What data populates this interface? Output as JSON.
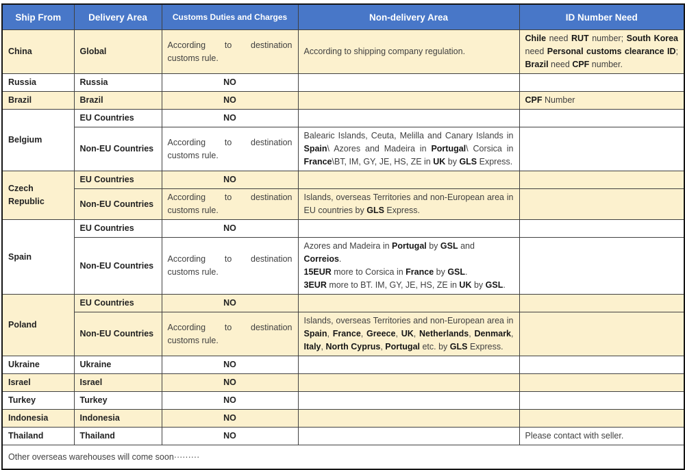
{
  "table": {
    "headers": [
      "Ship From",
      "Delivery Area",
      "Customs Duties and Charges",
      "Non-delivery Area",
      "ID Number Need"
    ],
    "accent_color": "#4877C8",
    "shade_color": "#FCF1CE",
    "groups": [
      {
        "ship_from": "China",
        "rows": [
          {
            "delivery": "Global",
            "customs": {
              "text": "According to destination customs rule.",
              "justify": true
            },
            "non_delivery": {
              "text": "According to shipping company regulation."
            },
            "id_need": {
              "justify": true,
              "segments": [
                {
                  "t": "Chile",
                  "b": 1
                },
                {
                  "t": " need "
                },
                {
                  "t": "RUT",
                  "b": 1
                },
                {
                  "t": " number; "
                },
                {
                  "t": "South Korea",
                  "b": 1
                },
                {
                  "t": " need "
                },
                {
                  "t": "Personal customs clearance ID",
                  "b": 1
                },
                {
                  "t": "; "
                },
                {
                  "t": "Brazil",
                  "b": 1
                },
                {
                  "t": " need "
                },
                {
                  "t": "CPF",
                  "b": 1
                },
                {
                  "t": " number."
                }
              ]
            }
          }
        ]
      },
      {
        "ship_from": "Russia",
        "rows": [
          {
            "delivery": "Russia",
            "customs": {
              "text": "NO",
              "align": "center"
            },
            "non_delivery": null,
            "id_need": null
          }
        ]
      },
      {
        "ship_from": "Brazil",
        "rows": [
          {
            "delivery": "Brazil",
            "customs": {
              "text": "NO",
              "align": "center"
            },
            "non_delivery": null,
            "id_need": {
              "segments": [
                {
                  "t": "CPF",
                  "b": 1
                },
                {
                  "t": " Number"
                }
              ]
            }
          }
        ]
      },
      {
        "ship_from": "Belgium",
        "rows": [
          {
            "delivery": "EU Countries",
            "customs": {
              "text": "NO",
              "align": "center"
            },
            "non_delivery": null,
            "id_need": null
          },
          {
            "delivery": "Non-EU Countries",
            "customs": {
              "text": "According to destination customs rule.",
              "justify": true
            },
            "non_delivery": {
              "justify": true,
              "segments": [
                {
                  "t": "Balearic Islands, Ceuta, Melilla and Canary Islands in "
                },
                {
                  "t": "Spain",
                  "b": 1
                },
                {
                  "t": "\\ Azores and Madeira in "
                },
                {
                  "t": "Portugal",
                  "b": 1
                },
                {
                  "t": "\\ Corsica in "
                },
                {
                  "t": "France",
                  "b": 1
                },
                {
                  "t": "\\BT, IM, GY, JE, HS, ZE in "
                },
                {
                  "t": "UK",
                  "b": 1
                },
                {
                  "t": " by "
                },
                {
                  "t": "GLS",
                  "b": 1
                },
                {
                  "t": " Express."
                }
              ]
            },
            "id_need": null
          }
        ]
      },
      {
        "ship_from": "Czech Republic",
        "rows": [
          {
            "delivery": "EU Countries",
            "customs": {
              "text": "NO",
              "align": "center"
            },
            "non_delivery": null,
            "id_need": null
          },
          {
            "delivery": "Non-EU Countries",
            "customs": {
              "text": "According to destination customs rule.",
              "justify": true
            },
            "non_delivery": {
              "justify": true,
              "segments": [
                {
                  "t": "Islands, overseas Territories and non-European area in EU countries by "
                },
                {
                  "t": "GLS",
                  "b": 1
                },
                {
                  "t": " Express."
                }
              ]
            },
            "id_need": null
          }
        ]
      },
      {
        "ship_from": "Spain",
        "rows": [
          {
            "delivery": "EU Countries",
            "customs": {
              "text": "NO",
              "align": "center"
            },
            "non_delivery": null,
            "id_need": null
          },
          {
            "delivery": "Non-EU Countries",
            "customs": {
              "text": "According to destination customs rule.",
              "justify": true
            },
            "non_delivery": {
              "segments": [
                {
                  "t": "Azores and Madeira in "
                },
                {
                  "t": "Portugal",
                  "b": 1
                },
                {
                  "t": " by "
                },
                {
                  "t": "GSL",
                  "b": 1
                },
                {
                  "t": " and "
                },
                {
                  "t": "Correios",
                  "b": 1
                },
                {
                  "t": "."
                },
                {
                  "br": 1
                },
                {
                  "t": "15EUR",
                  "b": 1
                },
                {
                  "t": " more to Corsica in "
                },
                {
                  "t": "France",
                  "b": 1
                },
                {
                  "t": " by "
                },
                {
                  "t": "GSL",
                  "b": 1
                },
                {
                  "t": "."
                },
                {
                  "br": 1
                },
                {
                  "t": "3EUR",
                  "b": 1
                },
                {
                  "t": " more to BT. IM, GY, JE, HS, ZE in "
                },
                {
                  "t": "UK",
                  "b": 1
                },
                {
                  "t": " by "
                },
                {
                  "t": "GSL",
                  "b": 1
                },
                {
                  "t": "."
                }
              ]
            },
            "id_need": null
          }
        ]
      },
      {
        "ship_from": "Poland",
        "rows": [
          {
            "delivery": "EU Countries",
            "customs": {
              "text": "NO",
              "align": "center"
            },
            "non_delivery": null,
            "id_need": null
          },
          {
            "delivery": "Non-EU Countries",
            "customs": {
              "text": "According to destination customs rule.",
              "justify": true
            },
            "non_delivery": {
              "justify": true,
              "segments": [
                {
                  "t": "Islands, overseas Territories and non-European area in "
                },
                {
                  "t": "Spain",
                  "b": 1
                },
                {
                  "t": ", "
                },
                {
                  "t": "France",
                  "b": 1
                },
                {
                  "t": ", "
                },
                {
                  "t": "Greece",
                  "b": 1
                },
                {
                  "t": ", "
                },
                {
                  "t": "UK",
                  "b": 1
                },
                {
                  "t": ", "
                },
                {
                  "t": "Netherlands",
                  "b": 1
                },
                {
                  "t": ", "
                },
                {
                  "t": "Denmark",
                  "b": 1
                },
                {
                  "t": ", "
                },
                {
                  "t": "Italy",
                  "b": 1
                },
                {
                  "t": ", "
                },
                {
                  "t": "North Cyprus",
                  "b": 1
                },
                {
                  "t": ", "
                },
                {
                  "t": "Portugal",
                  "b": 1
                },
                {
                  "t": " etc. by "
                },
                {
                  "t": "GLS",
                  "b": 1
                },
                {
                  "t": " Express."
                }
              ]
            },
            "id_need": null
          }
        ]
      },
      {
        "ship_from": "Ukraine",
        "rows": [
          {
            "delivery": "Ukraine",
            "customs": {
              "text": "NO",
              "align": "center"
            },
            "non_delivery": null,
            "id_need": null
          }
        ]
      },
      {
        "ship_from": "Israel",
        "rows": [
          {
            "delivery": "Israel",
            "customs": {
              "text": "NO",
              "align": "center"
            },
            "non_delivery": null,
            "id_need": null
          }
        ]
      },
      {
        "ship_from": "Turkey",
        "rows": [
          {
            "delivery": "Turkey",
            "customs": {
              "text": "NO",
              "align": "center"
            },
            "non_delivery": null,
            "id_need": null
          }
        ]
      },
      {
        "ship_from": "Indonesia",
        "rows": [
          {
            "delivery": "Indonesia",
            "customs": {
              "text": "NO",
              "align": "center"
            },
            "non_delivery": null,
            "id_need": null
          }
        ]
      },
      {
        "ship_from": "Thailand",
        "rows": [
          {
            "delivery": "Thailand",
            "customs": {
              "text": "NO",
              "align": "center"
            },
            "non_delivery": null,
            "id_need": {
              "text": "Please contact with seller."
            }
          }
        ]
      }
    ],
    "footer": "Other overseas warehouses will come soon·········"
  }
}
